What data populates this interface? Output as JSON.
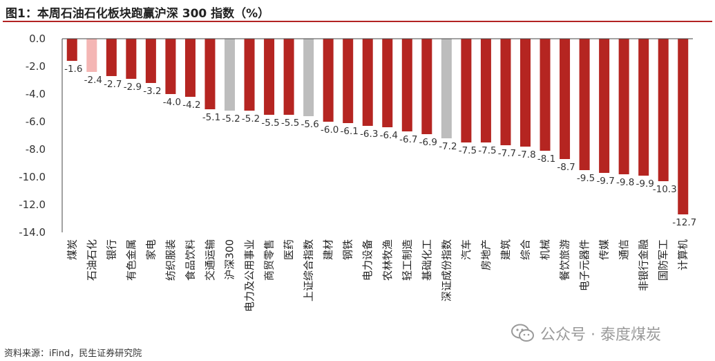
{
  "header": {
    "title": "图1：本周石油石化板块跑赢沪深 300 指数（%）"
  },
  "footer": {
    "source": "资料来源：iFind，民生证券研究院"
  },
  "watermark": {
    "text": "公众号 · 泰度煤炭",
    "icon": "wechat-icon"
  },
  "colors": {
    "bar": "#b52521",
    "highlight": "#f4b6b4",
    "index": "#bdbdbd",
    "title_rule": "#b22222"
  },
  "chart_data": {
    "type": "bar",
    "title": "本周石油石化板块跑赢沪深 300 指数（%）",
    "xlabel": "",
    "ylabel": "",
    "ylim": [
      -14,
      0
    ],
    "yticks": [
      "0.0",
      "-2.0",
      "-4.0",
      "-6.0",
      "-8.0",
      "-10.0",
      "-12.0",
      "-14.0"
    ],
    "ytick_values": [
      0,
      -2,
      -4,
      -6,
      -8,
      -10,
      -12,
      -14
    ],
    "categories": [
      "煤炭",
      "石油石化",
      "银行",
      "有色金属",
      "家电",
      "纺织服装",
      "食品饮料",
      "交通运输",
      "沪深300",
      "电力及公用事业",
      "商贸零售",
      "医药",
      "上证综合指数",
      "建材",
      "钢铁",
      "电力设备",
      "农林牧渔",
      "轻工制造",
      "基础化工",
      "深证成份指数",
      "汽车",
      "房地产",
      "建筑",
      "综合",
      "机械",
      "餐饮旅游",
      "电子元器件",
      "传媒",
      "通信",
      "非银行金融",
      "国防军工",
      "计算机"
    ],
    "values": [
      -1.6,
      -2.4,
      -2.7,
      -2.9,
      -3.2,
      -4.0,
      -4.2,
      -5.1,
      -5.2,
      -5.2,
      -5.5,
      -5.5,
      -5.6,
      -6.0,
      -6.1,
      -6.3,
      -6.4,
      -6.7,
      -6.9,
      -7.2,
      -7.5,
      -7.5,
      -7.7,
      -7.8,
      -8.1,
      -8.7,
      -9.5,
      -9.7,
      -9.8,
      -9.9,
      -10.3,
      -12.7
    ],
    "bar_kind": [
      "sector",
      "highlight",
      "sector",
      "sector",
      "sector",
      "sector",
      "sector",
      "sector",
      "index",
      "sector",
      "sector",
      "sector",
      "index",
      "sector",
      "sector",
      "sector",
      "sector",
      "sector",
      "sector",
      "index",
      "sector",
      "sector",
      "sector",
      "sector",
      "sector",
      "sector",
      "sector",
      "sector",
      "sector",
      "sector",
      "sector",
      "sector"
    ],
    "data_labels": [
      "-1.6",
      "-2.4",
      "-2.7",
      "-2.9",
      "-3.2",
      "-4.0",
      "-4.2",
      "-5.1",
      "-5.2",
      "-5.2",
      "-5.5",
      "-5.5",
      "-5.6",
      "-6.0",
      "-6.1",
      "-6.3",
      "-6.4",
      "-6.7",
      "-6.9",
      "-7.2",
      "-7.5",
      "-7.5",
      "-7.7",
      "-7.8",
      "-8.1",
      "-8.7",
      "-9.5",
      "-9.7",
      "-9.8",
      "-9.9",
      "-10.3",
      "-12.7"
    ],
    "grid": false,
    "legend": "none"
  }
}
